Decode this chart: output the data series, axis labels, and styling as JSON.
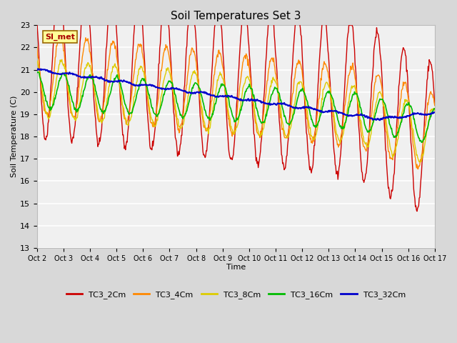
{
  "title": "Soil Temperatures Set 3",
  "xlabel": "Time",
  "ylabel": "Soil Temperature (C)",
  "ylim": [
    13.0,
    23.0
  ],
  "yticks": [
    13.0,
    14.0,
    15.0,
    16.0,
    17.0,
    18.0,
    19.0,
    20.0,
    21.0,
    22.0,
    23.0
  ],
  "xtick_labels": [
    "Oct 2",
    "Oct 3",
    "Oct 4",
    "Oct 5",
    "Oct 6",
    "Oct 7",
    "Oct 8",
    "Oct 9",
    "Oct 10",
    "Oct 11",
    "Oct 12",
    "Oct 13",
    "Oct 14",
    "Oct 15",
    "Oct 16",
    "Oct 17"
  ],
  "fig_bg_color": "#d8d8d8",
  "plot_bg_color": "#f0f0f0",
  "grid_color": "#ffffff",
  "annotation_text": "SI_met",
  "annotation_bg": "#ffff99",
  "annotation_border": "#996600",
  "legend_colors": [
    "#cc0000",
    "#ff8800",
    "#ddcc00",
    "#00bb00",
    "#0000cc"
  ],
  "legend_labels": [
    "TC3_2Cm",
    "TC3_4Cm",
    "TC3_8Cm",
    "TC3_16Cm",
    "TC3_32Cm"
  ],
  "series_colors": [
    "#cc0000",
    "#ff8800",
    "#ddcc00",
    "#00bb00",
    "#0000cc"
  ]
}
